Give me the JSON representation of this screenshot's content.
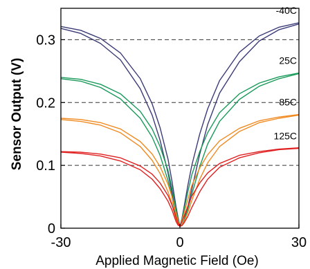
{
  "chart_data": {
    "type": "line",
    "title": "",
    "xlabel": "Applied Magnetic Field (Oe)",
    "ylabel": "Sensor Output (V)",
    "xlim": [
      -30,
      30
    ],
    "ylim": [
      0,
      0.35
    ],
    "x_ticks": [
      "-30",
      "0",
      "30"
    ],
    "y_ticks": [
      "0",
      "0.1",
      "0.2",
      "0.3"
    ],
    "grid": "horizontal dashed at 0.1, 0.2, 0.3",
    "series": [
      {
        "name": "-40C",
        "color": "#3a3a78",
        "sweep_a": {
          "x": [
            -30,
            -25,
            -20,
            -15,
            -10,
            -7,
            -5,
            -3,
            -2,
            -1,
            -0.5,
            0,
            0.5,
            1,
            2,
            3,
            5,
            7,
            10,
            15,
            20,
            25,
            30
          ],
          "y": [
            0.321,
            0.315,
            0.302,
            0.279,
            0.238,
            0.198,
            0.16,
            0.11,
            0.075,
            0.035,
            0.018,
            0.003,
            0.005,
            0.012,
            0.034,
            0.062,
            0.118,
            0.165,
            0.215,
            0.265,
            0.298,
            0.316,
            0.325
          ]
        },
        "sweep_b": {
          "x": [
            -30,
            -25,
            -20,
            -15,
            -10,
            -7,
            -5,
            -3,
            -2,
            -1,
            -0.5,
            0,
            0.5,
            1,
            2,
            3,
            5,
            7,
            10,
            15,
            20,
            25,
            30
          ],
          "y": [
            0.318,
            0.31,
            0.294,
            0.268,
            0.222,
            0.18,
            0.14,
            0.088,
            0.056,
            0.02,
            0.008,
            0.003,
            0.015,
            0.032,
            0.068,
            0.1,
            0.15,
            0.19,
            0.235,
            0.28,
            0.306,
            0.32,
            0.327
          ]
        }
      },
      {
        "name": "25C",
        "color": "#1a9a5a",
        "sweep_a": {
          "x": [
            -30,
            -25,
            -20,
            -15,
            -10,
            -7,
            -5,
            -3,
            -2,
            -1,
            -0.5,
            0,
            0.5,
            1,
            2,
            3,
            5,
            7,
            10,
            15,
            20,
            25,
            30
          ],
          "y": [
            0.24,
            0.237,
            0.229,
            0.214,
            0.186,
            0.158,
            0.13,
            0.092,
            0.064,
            0.03,
            0.015,
            0.003,
            0.005,
            0.012,
            0.03,
            0.054,
            0.098,
            0.134,
            0.17,
            0.205,
            0.226,
            0.238,
            0.246
          ]
        },
        "sweep_b": {
          "x": [
            -30,
            -25,
            -20,
            -15,
            -10,
            -7,
            -5,
            -3,
            -2,
            -1,
            -0.5,
            0,
            0.5,
            1,
            2,
            3,
            5,
            7,
            10,
            15,
            20,
            25,
            30
          ],
          "y": [
            0.238,
            0.234,
            0.224,
            0.206,
            0.175,
            0.145,
            0.116,
            0.076,
            0.05,
            0.018,
            0.008,
            0.003,
            0.014,
            0.028,
            0.058,
            0.085,
            0.122,
            0.152,
            0.184,
            0.214,
            0.231,
            0.241,
            0.247
          ]
        }
      },
      {
        "name": "85C",
        "color": "#f08a20",
        "sweep_a": {
          "x": [
            -30,
            -25,
            -20,
            -15,
            -10,
            -7,
            -5,
            -3,
            -2,
            -1,
            -0.5,
            0,
            0.5,
            1,
            2,
            3,
            5,
            7,
            10,
            15,
            20,
            25,
            30
          ],
          "y": [
            0.175,
            0.173,
            0.168,
            0.158,
            0.138,
            0.118,
            0.098,
            0.07,
            0.05,
            0.024,
            0.012,
            0.003,
            0.005,
            0.01,
            0.025,
            0.044,
            0.078,
            0.104,
            0.13,
            0.154,
            0.168,
            0.175,
            0.18
          ]
        },
        "sweep_b": {
          "x": [
            -30,
            -25,
            -20,
            -15,
            -10,
            -7,
            -5,
            -3,
            -2,
            -1,
            -0.5,
            0,
            0.5,
            1,
            2,
            3,
            5,
            7,
            10,
            15,
            20,
            25,
            30
          ],
          "y": [
            0.173,
            0.17,
            0.164,
            0.152,
            0.13,
            0.108,
            0.087,
            0.058,
            0.039,
            0.014,
            0.006,
            0.003,
            0.012,
            0.023,
            0.046,
            0.068,
            0.096,
            0.117,
            0.139,
            0.159,
            0.171,
            0.177,
            0.181
          ]
        }
      },
      {
        "name": "125C",
        "color": "#e02020",
        "sweep_a": {
          "x": [
            -30,
            -25,
            -20,
            -15,
            -10,
            -7,
            -5,
            -3,
            -2,
            -1,
            -0.5,
            0,
            0.5,
            1,
            2,
            3,
            5,
            7,
            10,
            15,
            20,
            25,
            30
          ],
          "y": [
            0.122,
            0.121,
            0.118,
            0.112,
            0.099,
            0.086,
            0.072,
            0.052,
            0.037,
            0.018,
            0.009,
            0.003,
            0.004,
            0.008,
            0.019,
            0.033,
            0.058,
            0.078,
            0.097,
            0.112,
            0.12,
            0.125,
            0.127
          ]
        },
        "sweep_b": {
          "x": [
            -30,
            -25,
            -20,
            -15,
            -10,
            -7,
            -5,
            -3,
            -2,
            -1,
            -0.5,
            0,
            0.5,
            1,
            2,
            3,
            5,
            7,
            10,
            15,
            20,
            25,
            30
          ],
          "y": [
            0.121,
            0.119,
            0.115,
            0.107,
            0.093,
            0.078,
            0.063,
            0.043,
            0.029,
            0.011,
            0.005,
            0.003,
            0.01,
            0.018,
            0.035,
            0.051,
            0.072,
            0.088,
            0.103,
            0.116,
            0.122,
            0.126,
            0.128
          ]
        }
      }
    ]
  }
}
